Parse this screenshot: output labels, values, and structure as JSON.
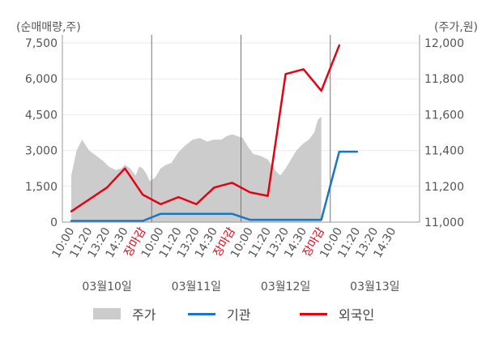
{
  "chart_data": {
    "type": "line",
    "left_axis_unit": "(순매매량,주)",
    "right_axis_unit": "(주가,원)",
    "y_left": {
      "min": 0,
      "max": 7500,
      "ticks": [
        "0",
        "1,500",
        "3,000",
        "4,500",
        "6,000",
        "7,500"
      ]
    },
    "y_right": {
      "min": 11000,
      "max": 12000,
      "ticks": [
        "11,000",
        "11,200",
        "11,400",
        "11,600",
        "11,800",
        "12,000"
      ]
    },
    "x_slots": 20,
    "x_ticks": [
      {
        "label": "10:00",
        "slot": 0
      },
      {
        "label": "11:20",
        "slot": 1
      },
      {
        "label": "13:20",
        "slot": 2
      },
      {
        "label": "14:30",
        "slot": 3
      },
      {
        "label": "장마감",
        "slot": 4,
        "highlight": true
      },
      {
        "label": "10:00",
        "slot": 5
      },
      {
        "label": "11:20",
        "slot": 6
      },
      {
        "label": "13:20",
        "slot": 7
      },
      {
        "label": "14:30",
        "slot": 8
      },
      {
        "label": "장마감",
        "slot": 9,
        "highlight": true
      },
      {
        "label": "10:00",
        "slot": 10
      },
      {
        "label": "11:20",
        "slot": 11
      },
      {
        "label": "13:20",
        "slot": 12
      },
      {
        "label": "14:30",
        "slot": 13
      },
      {
        "label": "장마감",
        "slot": 14,
        "highlight": true
      },
      {
        "label": "10:00",
        "slot": 15
      },
      {
        "label": "11:20",
        "slot": 16
      },
      {
        "label": "13:20",
        "slot": 17
      },
      {
        "label": "14:30",
        "slot": 18
      }
    ],
    "day_labels": [
      {
        "label": "03월10일",
        "slot": 2
      },
      {
        "label": "03월11일",
        "slot": 7
      },
      {
        "label": "03월12일",
        "slot": 12
      },
      {
        "label": "03월13일",
        "slot": 17
      }
    ],
    "day_dividers": [
      4.5,
      9.5,
      14.5
    ],
    "series": [
      {
        "name": "주가",
        "axis": "right",
        "style": "area",
        "color": "#cccccc",
        "points": [
          [
            0,
            11260
          ],
          [
            0.3,
            11400
          ],
          [
            0.6,
            11460
          ],
          [
            1.0,
            11400
          ],
          [
            1.4,
            11370
          ],
          [
            1.8,
            11340
          ],
          [
            2.1,
            11310
          ],
          [
            2.5,
            11290
          ],
          [
            2.8,
            11300
          ],
          [
            3.0,
            11320
          ],
          [
            3.3,
            11300
          ],
          [
            3.6,
            11260
          ],
          [
            3.8,
            11310
          ],
          [
            4.0,
            11300
          ],
          [
            4.2,
            11270
          ],
          [
            4.4,
            11230
          ],
          [
            4.7,
            11250
          ],
          [
            5.0,
            11300
          ],
          [
            5.3,
            11320
          ],
          [
            5.6,
            11330
          ],
          [
            6.0,
            11390
          ],
          [
            6.4,
            11430
          ],
          [
            6.8,
            11460
          ],
          [
            7.2,
            11470
          ],
          [
            7.6,
            11450
          ],
          [
            8.0,
            11460
          ],
          [
            8.4,
            11460
          ],
          [
            8.7,
            11480
          ],
          [
            9.0,
            11490
          ],
          [
            9.3,
            11480
          ],
          [
            9.6,
            11470
          ],
          [
            9.9,
            11420
          ],
          [
            10.2,
            11380
          ],
          [
            10.6,
            11370
          ],
          [
            11.0,
            11350
          ],
          [
            11.4,
            11290
          ],
          [
            11.7,
            11260
          ],
          [
            12.0,
            11300
          ],
          [
            12.3,
            11350
          ],
          [
            12.6,
            11400
          ],
          [
            13.0,
            11440
          ],
          [
            13.3,
            11460
          ],
          [
            13.6,
            11500
          ],
          [
            13.8,
            11570
          ],
          [
            14.0,
            11590
          ]
        ]
      },
      {
        "name": "기관",
        "axis": "left",
        "style": "line",
        "color": "#1a76c0",
        "points": [
          [
            0,
            50
          ],
          [
            4,
            50
          ],
          [
            5,
            350
          ],
          [
            9,
            350
          ],
          [
            10,
            100
          ],
          [
            14,
            100
          ],
          [
            15,
            2950
          ],
          [
            16,
            2950
          ]
        ]
      },
      {
        "name": "외국인",
        "axis": "left",
        "style": "line",
        "color": "#e60012",
        "points": [
          [
            0,
            450
          ],
          [
            1,
            950
          ],
          [
            2,
            1450
          ],
          [
            3,
            2250
          ],
          [
            4,
            1150
          ],
          [
            5,
            750
          ],
          [
            6,
            1050
          ],
          [
            7,
            750
          ],
          [
            8,
            1450
          ],
          [
            9,
            1650
          ],
          [
            10,
            1250
          ],
          [
            11,
            1100
          ],
          [
            12,
            6200
          ],
          [
            13,
            6400
          ],
          [
            14,
            5500
          ],
          [
            15,
            7400
          ]
        ]
      }
    ]
  },
  "legend": [
    {
      "label": "주가",
      "color": "#cccccc",
      "kind": "area"
    },
    {
      "label": "기관",
      "color": "#1a76c0",
      "kind": "line"
    },
    {
      "label": "외국인",
      "color": "#e60012",
      "kind": "line"
    }
  ]
}
